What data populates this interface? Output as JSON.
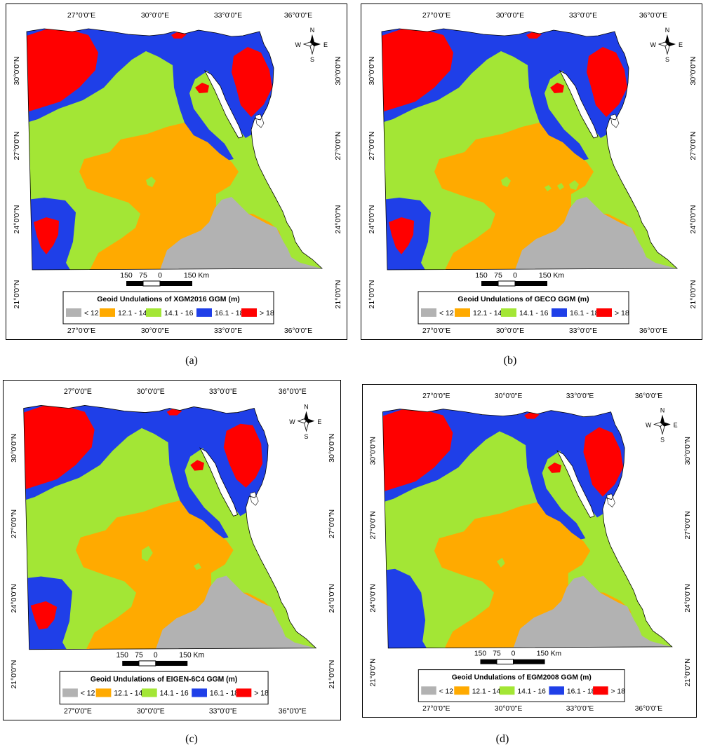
{
  "colors": {
    "lt12": "#b2b2b2",
    "c12_14": "#ffaa00",
    "c14_16": "#a3e635",
    "c16_18": "#1f3fe8",
    "gt18": "#ff0000",
    "land_outline": "#000000",
    "panel_border": "#000000"
  },
  "lon_labels": [
    "27°0'0\"E",
    "30°0'0\"E",
    "33°0'0\"E",
    "36°0'0\"E"
  ],
  "lat_labels": [
    "30°0'0\"N",
    "27°0'0\"N",
    "24°0'0\"N",
    "21°0'0\"N"
  ],
  "legend_classes": [
    "< 12",
    "12.1 - 14",
    "14.1 - 16",
    "16.1 - 18",
    "> 18"
  ],
  "scalebar": {
    "labels": [
      "150",
      "75",
      "0",
      "150 Km"
    ]
  },
  "compass": {
    "n": "N",
    "s": "S",
    "e": "E",
    "w": "W"
  },
  "panels": [
    {
      "caption": "(a)",
      "legend_title": "Geoid Undulations of XGM2016 GGM (m)"
    },
    {
      "caption": "(b)",
      "legend_title": "Geoid Undulations of GECO GGM (m)"
    },
    {
      "caption": "(c)",
      "legend_title": "Geoid Undulations of EIGEN-6C4 GGM (m)"
    },
    {
      "caption": "(d)",
      "legend_title": "Geoid Undulations of EGM2008 GGM (m)"
    }
  ]
}
